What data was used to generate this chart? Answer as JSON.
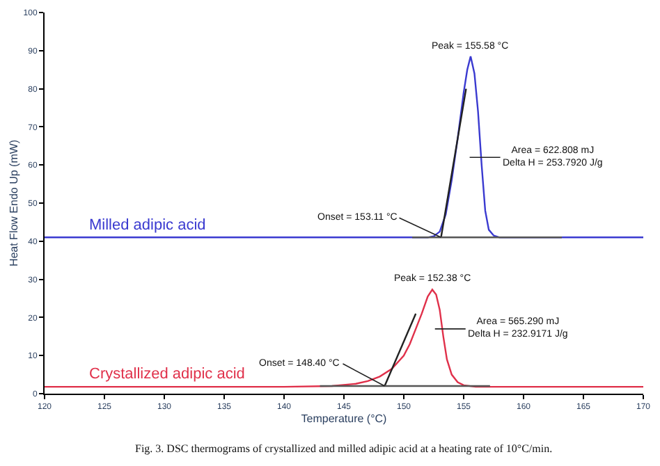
{
  "chart_data": {
    "type": "line",
    "xlabel": "Temperature (°C)",
    "ylabel": "Heat Flow Endo Up (mW)",
    "xlim": [
      120,
      170
    ],
    "xticks": [
      120,
      125,
      130,
      135,
      140,
      145,
      150,
      155,
      160,
      165,
      170
    ],
    "ylim": [
      0,
      100
    ],
    "yticks": [
      0,
      10,
      20,
      30,
      40,
      50,
      60,
      70,
      80,
      90,
      100
    ],
    "legend": false,
    "series": [
      {
        "name": "Milled adipic acid",
        "color": "#3a3ad0",
        "x": [
          120,
          130,
          140,
          150,
          152,
          152.5,
          153,
          153.5,
          154,
          154.5,
          155,
          155.3,
          155.58,
          155.9,
          156.2,
          156.5,
          156.8,
          157.1,
          157.5,
          158,
          160,
          165,
          170
        ],
        "values": [
          41,
          41,
          41,
          41,
          41,
          41.3,
          42.5,
          47,
          56,
          67,
          79,
          85,
          88.5,
          84,
          74,
          60,
          48,
          43,
          41.5,
          41,
          41,
          41,
          41
        ]
      },
      {
        "name": "Crystallized adipic acid",
        "color": "#e0304a",
        "x": [
          120,
          130,
          140,
          144,
          146,
          147,
          148,
          149,
          150,
          150.5,
          151,
          151.5,
          152,
          152.38,
          152.7,
          153,
          153.3,
          153.6,
          154,
          154.5,
          155,
          156,
          160,
          170
        ],
        "values": [
          1.8,
          1.8,
          1.8,
          2,
          2.6,
          3.3,
          4.5,
          6.5,
          10,
          13,
          17,
          21,
          25.5,
          27.3,
          26,
          22,
          15,
          9,
          5,
          3,
          2.2,
          1.8,
          1.8,
          1.8
        ]
      },
      {
        "color": "#222222",
        "x": [
          153.11,
          155.2
        ],
        "values": [
          41,
          80
        ]
      },
      {
        "color": "#222222",
        "x": [
          148.4,
          151.0
        ],
        "values": [
          2,
          21
        ]
      },
      {
        "color": "#555555",
        "x": [
          150.7,
          163.2
        ],
        "values": [
          41,
          41
        ]
      },
      {
        "color": "#555555",
        "x": [
          143,
          157.2
        ],
        "values": [
          2,
          2
        ]
      }
    ],
    "annotations": [
      {
        "text": "Peak = 155.58 °C",
        "x": 155.58,
        "y": 88.5
      },
      {
        "text": "Onset = 153.11 °C",
        "x": 153.11,
        "y": 41
      },
      "Area = 622.808 mJ\nDelta H = 253.7920 J/g",
      {
        "text": "Peak = 152.38 °C",
        "x": 152.38,
        "y": 27.3
      },
      {
        "text": "Onset = 148.40 °C",
        "x": 148.4,
        "y": 2
      },
      "Area = 565.290 mJ\nDelta H = 232.9171 J/g",
      "Fig. 3. DSC thermograms of crystallized and milled adipic acid at a heating rate of 10°C/min."
    ]
  }
}
